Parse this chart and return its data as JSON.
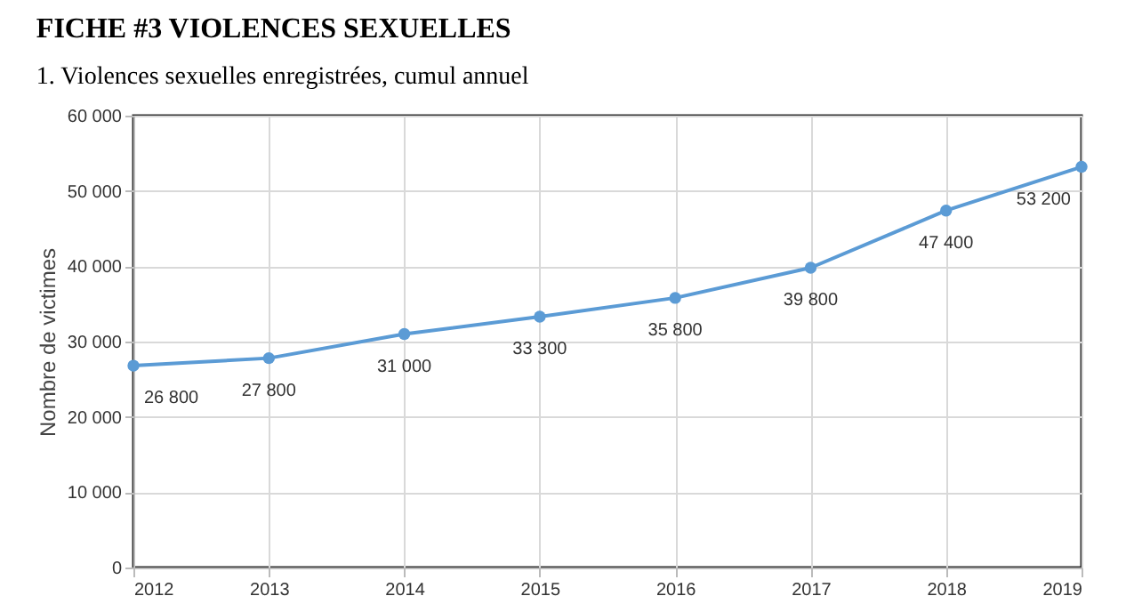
{
  "chart_data": {
    "type": "line",
    "title": "FICHE #3 VIOLENCES SEXUELLES",
    "subtitle": "1. Violences sexuelles enregistrées, cumul annuel",
    "ylabel": "Nombre de victimes",
    "x": [
      2012,
      2013,
      2014,
      2015,
      2016,
      2017,
      2018,
      2019
    ],
    "series": [
      {
        "color": "#5b9bd5",
        "values": [
          26800,
          27800,
          31000,
          33300,
          35800,
          39800,
          47400,
          53200
        ],
        "value_labels": [
          "26 800",
          "27 800",
          "31 000",
          "33 300",
          "35 800",
          "39 800",
          "47 400",
          "53 200"
        ]
      }
    ],
    "xlim": [
      2012,
      2019
    ],
    "xticks": [
      2012,
      2013,
      2014,
      2015,
      2016,
      2017,
      2018,
      2019
    ],
    "ylim": [
      0,
      60000
    ],
    "yticks": [
      {
        "value": 0,
        "label": "0"
      },
      {
        "value": 10000,
        "label": "10 000"
      },
      {
        "value": 20000,
        "label": "20 000"
      },
      {
        "value": 30000,
        "label": "30 000"
      },
      {
        "value": 40000,
        "label": "40 000"
      },
      {
        "value": 50000,
        "label": "50 000"
      },
      {
        "value": 60000,
        "label": "60 000"
      }
    ],
    "grid": true,
    "marker": "circle",
    "line_style": "solid"
  }
}
